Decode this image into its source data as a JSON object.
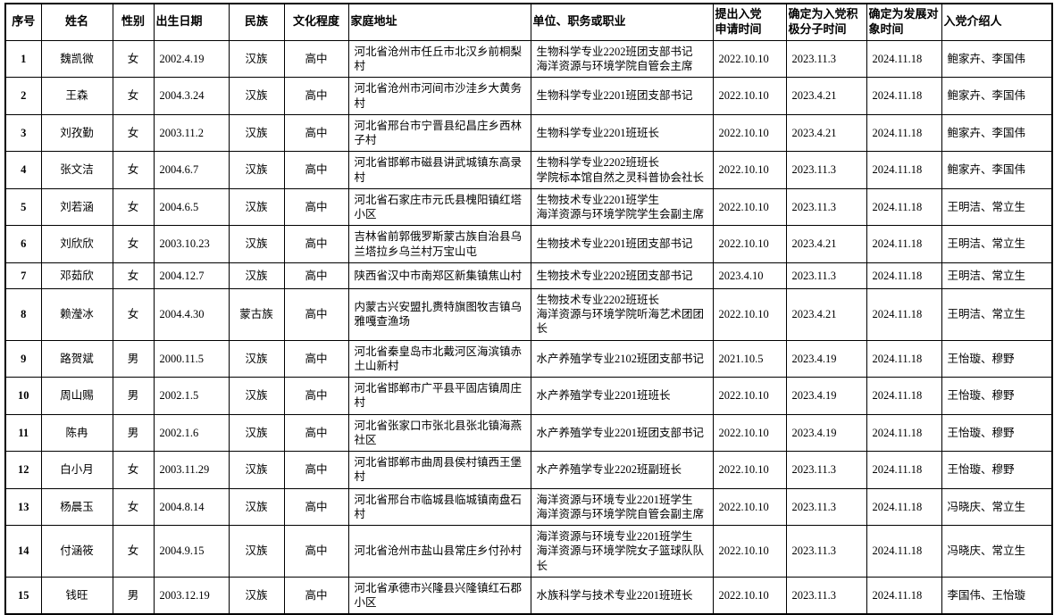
{
  "page": {
    "background_color": "#ffffff",
    "border_color": "#000000",
    "text_color": "#000000"
  },
  "table": {
    "fields": [
      "no",
      "name",
      "gender",
      "birth",
      "ethnicity",
      "education",
      "address",
      "unit",
      "apply",
      "activist",
      "target",
      "introducers"
    ],
    "headers": {
      "no": "序号",
      "name": "姓名",
      "gender": "性别",
      "birth": "出生日期",
      "ethnicity": "民族",
      "education": "文化程度",
      "address": "家庭地址",
      "unit": "单位、职务或职业",
      "apply": "提出入党\n申请时间",
      "activist": "确定为入党积\n极分子时间",
      "target": "确定为发展对\n象时间",
      "introducers": "入党介绍人"
    },
    "rows": [
      {
        "no": "1",
        "name": "魏凯微",
        "gender": "女",
        "birth": "2002.4.19",
        "ethnicity": "汉族",
        "education": "高中",
        "address": "河北省沧州市任丘市北汉乡前桐梨村",
        "unit": "生物科学专业2202班团支部书记\n海洋资源与环境学院自管会主席",
        "apply": "2022.10.10",
        "activist": "2023.11.3",
        "target": "2024.11.18",
        "introducers": "鲍家卉、李国伟"
      },
      {
        "no": "2",
        "name": "王森",
        "gender": "女",
        "birth": "2004.3.24",
        "ethnicity": "汉族",
        "education": "高中",
        "address": "河北省沧州市河间市沙洼乡大黄务村",
        "unit": "生物科学专业2201班团支部书记",
        "apply": "2022.10.10",
        "activist": "2023.4.21",
        "target": "2024.11.18",
        "introducers": "鲍家卉、李国伟"
      },
      {
        "no": "3",
        "name": "刘孜勤",
        "gender": "女",
        "birth": "2003.11.2",
        "ethnicity": "汉族",
        "education": "高中",
        "address": "河北省邢台市宁晋县纪昌庄乡西林子村",
        "unit": "生物科学专业2201班班长",
        "apply": "2022.10.10",
        "activist": "2023.4.21",
        "target": "2024.11.18",
        "introducers": "鲍家卉、李国伟"
      },
      {
        "no": "4",
        "name": "张文洁",
        "gender": "女",
        "birth": "2004.6.7",
        "ethnicity": "汉族",
        "education": "高中",
        "address": "河北省邯郸市磁县讲武城镇东高录村",
        "unit": "生物科学专业2202班班长\n学院标本馆自然之灵科普协会社长",
        "apply": "2022.10.10",
        "activist": "2023.11.3",
        "target": "2024.11.18",
        "introducers": "鲍家卉、李国伟"
      },
      {
        "no": "5",
        "name": "刘若涵",
        "gender": "女",
        "birth": "2004.6.5",
        "ethnicity": "汉族",
        "education": "高中",
        "address": "河北省石家庄市元氏县槐阳镇红塔小区",
        "unit": "生物技术专业2201班学生\n海洋资源与环境学院学生会副主席",
        "apply": "2022.10.10",
        "activist": "2023.11.3",
        "target": "2024.11.18",
        "introducers": "王明洁、常立生"
      },
      {
        "no": "6",
        "name": "刘欣欣",
        "gender": "女",
        "birth": "2003.10.23",
        "ethnicity": "汉族",
        "education": "高中",
        "address": "吉林省前郭俄罗斯蒙古族自治县乌兰塔拉乡乌兰村万宝山屯",
        "unit": "生物技术专业2201班团支部书记",
        "apply": "2022.10.10",
        "activist": "2023.4.21",
        "target": "2024.11.18",
        "introducers": "王明洁、常立生"
      },
      {
        "no": "7",
        "name": "邓茹欣",
        "gender": "女",
        "birth": "2004.12.7",
        "ethnicity": "汉族",
        "education": "高中",
        "address": "陕西省汉中市南郑区新集镇焦山村",
        "unit": "生物技术专业2202班团支部书记",
        "apply": "2023.4.10",
        "activist": "2023.11.3",
        "target": "2024.11.18",
        "introducers": "王明洁、常立生"
      },
      {
        "no": "8",
        "name": "赖瀅冰",
        "gender": "女",
        "birth": "2004.4.30",
        "ethnicity": "蒙古族",
        "education": "高中",
        "address": "内蒙古兴安盟扎赉特旗图牧吉镇乌雅嘎查渔场",
        "unit": "生物技术专业2202班班长\n海洋资源与环境学院听海艺术团团长",
        "apply": "2022.10.10",
        "activist": "2023.4.21",
        "target": "2024.11.18",
        "introducers": "王明洁、常立生"
      },
      {
        "no": "9",
        "name": "路贺斌",
        "gender": "男",
        "birth": "2000.11.5",
        "ethnicity": "汉族",
        "education": "高中",
        "address": "河北省秦皇岛市北戴河区海滨镇赤土山新村",
        "unit": "水产养殖学专业2102班团支部书记",
        "apply": "2021.10.5",
        "activist": "2023.4.19",
        "target": "2024.11.18",
        "introducers": "王怡璇、穆野"
      },
      {
        "no": "10",
        "name": "周山赐",
        "gender": "男",
        "birth": "2002.1.5",
        "ethnicity": "汉族",
        "education": "高中",
        "address": "河北省邯郸市广平县平固店镇周庄村",
        "unit": "水产养殖学专业2201班班长",
        "apply": "2022.10.10",
        "activist": "2023.4.19",
        "target": "2024.11.18",
        "introducers": "王怡璇、穆野"
      },
      {
        "no": "11",
        "name": "陈冉",
        "gender": "男",
        "birth": "2002.1.6",
        "ethnicity": "汉族",
        "education": "高中",
        "address": "河北省张家口市张北县张北镇海燕社区",
        "unit": "水产养殖学专业2201班团支部书记",
        "apply": "2022.10.10",
        "activist": "2023.4.19",
        "target": "2024.11.18",
        "introducers": "王怡璇、穆野"
      },
      {
        "no": "12",
        "name": "白小月",
        "gender": "女",
        "birth": "2003.11.29",
        "ethnicity": "汉族",
        "education": "高中",
        "address": "河北省邯郸市曲周县侯村镇西王堡村",
        "unit": "水产养殖学专业2202班副班长",
        "apply": "2022.10.10",
        "activist": "2023.11.3",
        "target": "2024.11.18",
        "introducers": "王怡璇、穆野"
      },
      {
        "no": "13",
        "name": "杨晨玉",
        "gender": "女",
        "birth": "2004.8.14",
        "ethnicity": "汉族",
        "education": "高中",
        "address": "河北省邢台市临城县临城镇南盘石村",
        "unit": "海洋资源与环境专业2201班学生\n海洋资源与环境学院自管会副主席",
        "apply": "2022.10.10",
        "activist": "2023.11.3",
        "target": "2024.11.18",
        "introducers": "冯晓庆、常立生"
      },
      {
        "no": "14",
        "name": "付涵筱",
        "gender": "女",
        "birth": "2004.9.15",
        "ethnicity": "汉族",
        "education": "高中",
        "address": "河北省沧州市盐山县常庄乡付孙村",
        "unit": "海洋资源与环境专业2201班学生\n海洋资源与环境学院女子篮球队队长",
        "apply": "2022.10.10",
        "activist": "2023.11.3",
        "target": "2024.11.18",
        "introducers": "冯晓庆、常立生"
      },
      {
        "no": "15",
        "name": "钱旺",
        "gender": "男",
        "birth": "2003.12.19",
        "ethnicity": "汉族",
        "education": "高中",
        "address": "河北省承德市兴隆县兴隆镇红石郡小区",
        "unit": "水族科学与技术专业2201班班长",
        "apply": "2022.10.10",
        "activist": "2023.11.3",
        "target": "2024.11.18",
        "introducers": "李国伟、王怡璇"
      }
    ]
  }
}
